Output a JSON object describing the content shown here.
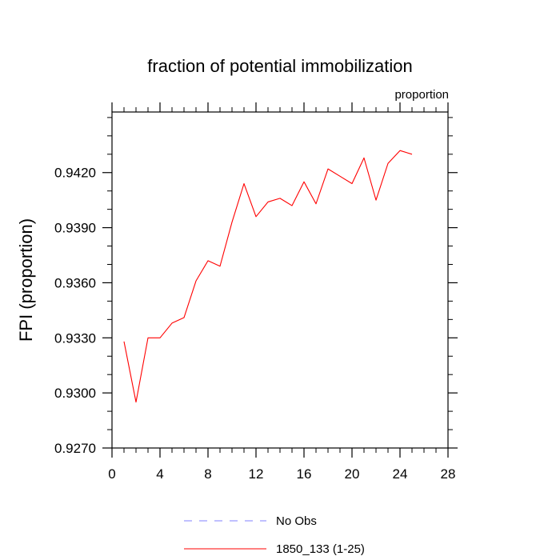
{
  "chart_data": {
    "type": "line",
    "title": "fraction of potential immobilization",
    "units_label": "proportion",
    "ylabel": "FPI  (proportion)",
    "xlabel": "",
    "xlim": [
      0,
      28
    ],
    "ylim": [
      0.927,
      0.9453
    ],
    "x_ticks": [
      0,
      4,
      8,
      12,
      16,
      20,
      24,
      28
    ],
    "x_tick_labels": [
      "0",
      "4",
      "8",
      "12",
      "16",
      "20",
      "24",
      "28"
    ],
    "y_ticks": [
      0.927,
      0.93,
      0.933,
      0.936,
      0.939,
      0.942
    ],
    "y_tick_labels": [
      "0.9270",
      "0.9300",
      "0.9330",
      "0.9360",
      "0.9390",
      "0.9420"
    ],
    "grid": false,
    "legend_position": "bottom-center",
    "series": [
      {
        "name": "1850_133 (1-25)",
        "color": "#ff0000",
        "style": "solid",
        "x": [
          1,
          2,
          3,
          4,
          5,
          6,
          7,
          8,
          9,
          10,
          11,
          12,
          13,
          14,
          15,
          16,
          17,
          18,
          19,
          20,
          21,
          22,
          23,
          24,
          25
        ],
        "values": [
          0.9328,
          0.9295,
          0.933,
          0.933,
          0.9338,
          0.9341,
          0.9361,
          0.9372,
          0.9369,
          0.9393,
          0.9414,
          0.9396,
          0.9404,
          0.9406,
          0.9402,
          0.9415,
          0.9403,
          0.9422,
          0.9418,
          0.9414,
          0.9428,
          0.9405,
          0.9425,
          0.9432,
          0.943
        ]
      }
    ],
    "legend": [
      {
        "label": "No Obs",
        "color": "#8080ff",
        "style": "dashed"
      },
      {
        "label": "1850_133 (1-25)",
        "color": "#ff0000",
        "style": "solid"
      }
    ]
  }
}
